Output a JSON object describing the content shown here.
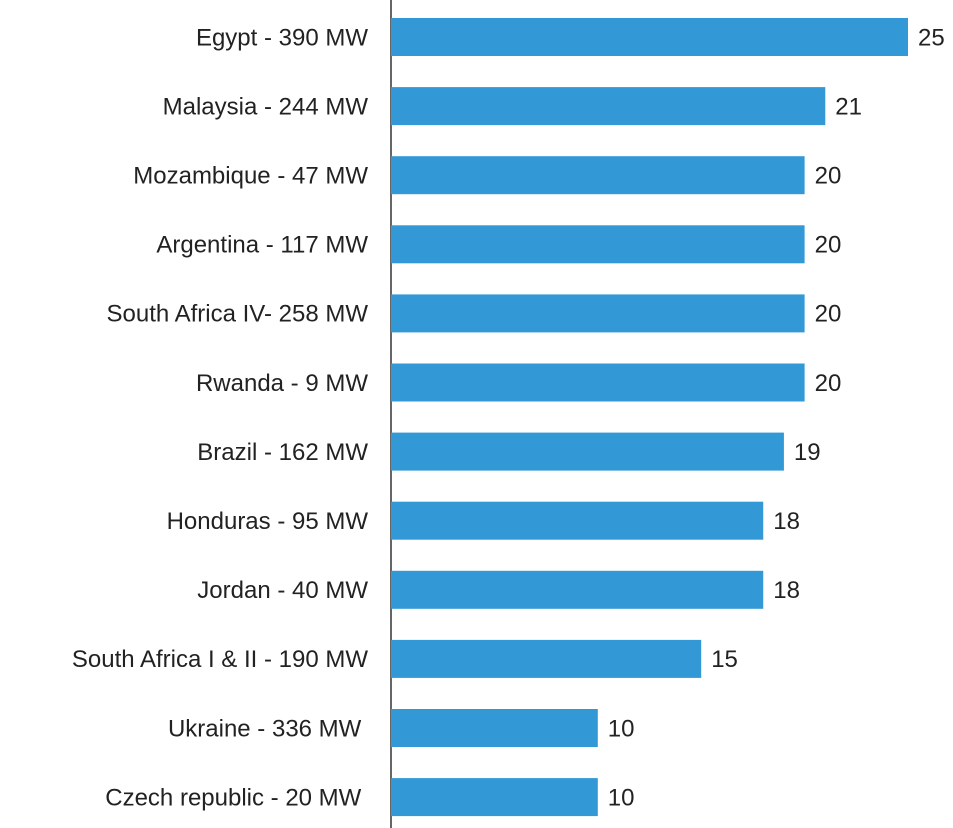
{
  "chart_data": {
    "type": "bar",
    "orientation": "horizontal",
    "categories": [
      "Egypt - 390 MW",
      "Malaysia - 244 MW",
      "Mozambique - 47 MW",
      "Argentina - 117 MW",
      "South Africa IV- 258 MW",
      "Rwanda - 9 MW",
      "Brazil - 162 MW",
      "Honduras - 95 MW",
      "Jordan - 40 MW",
      "South Africa I & II - 190 MW",
      "Ukraine - 336 MW ",
      "Czech republic - 20 MW "
    ],
    "values": [
      25,
      21,
      20,
      20,
      20,
      20,
      19,
      18,
      18,
      15,
      10,
      10
    ],
    "color": "#3399d6"
  }
}
